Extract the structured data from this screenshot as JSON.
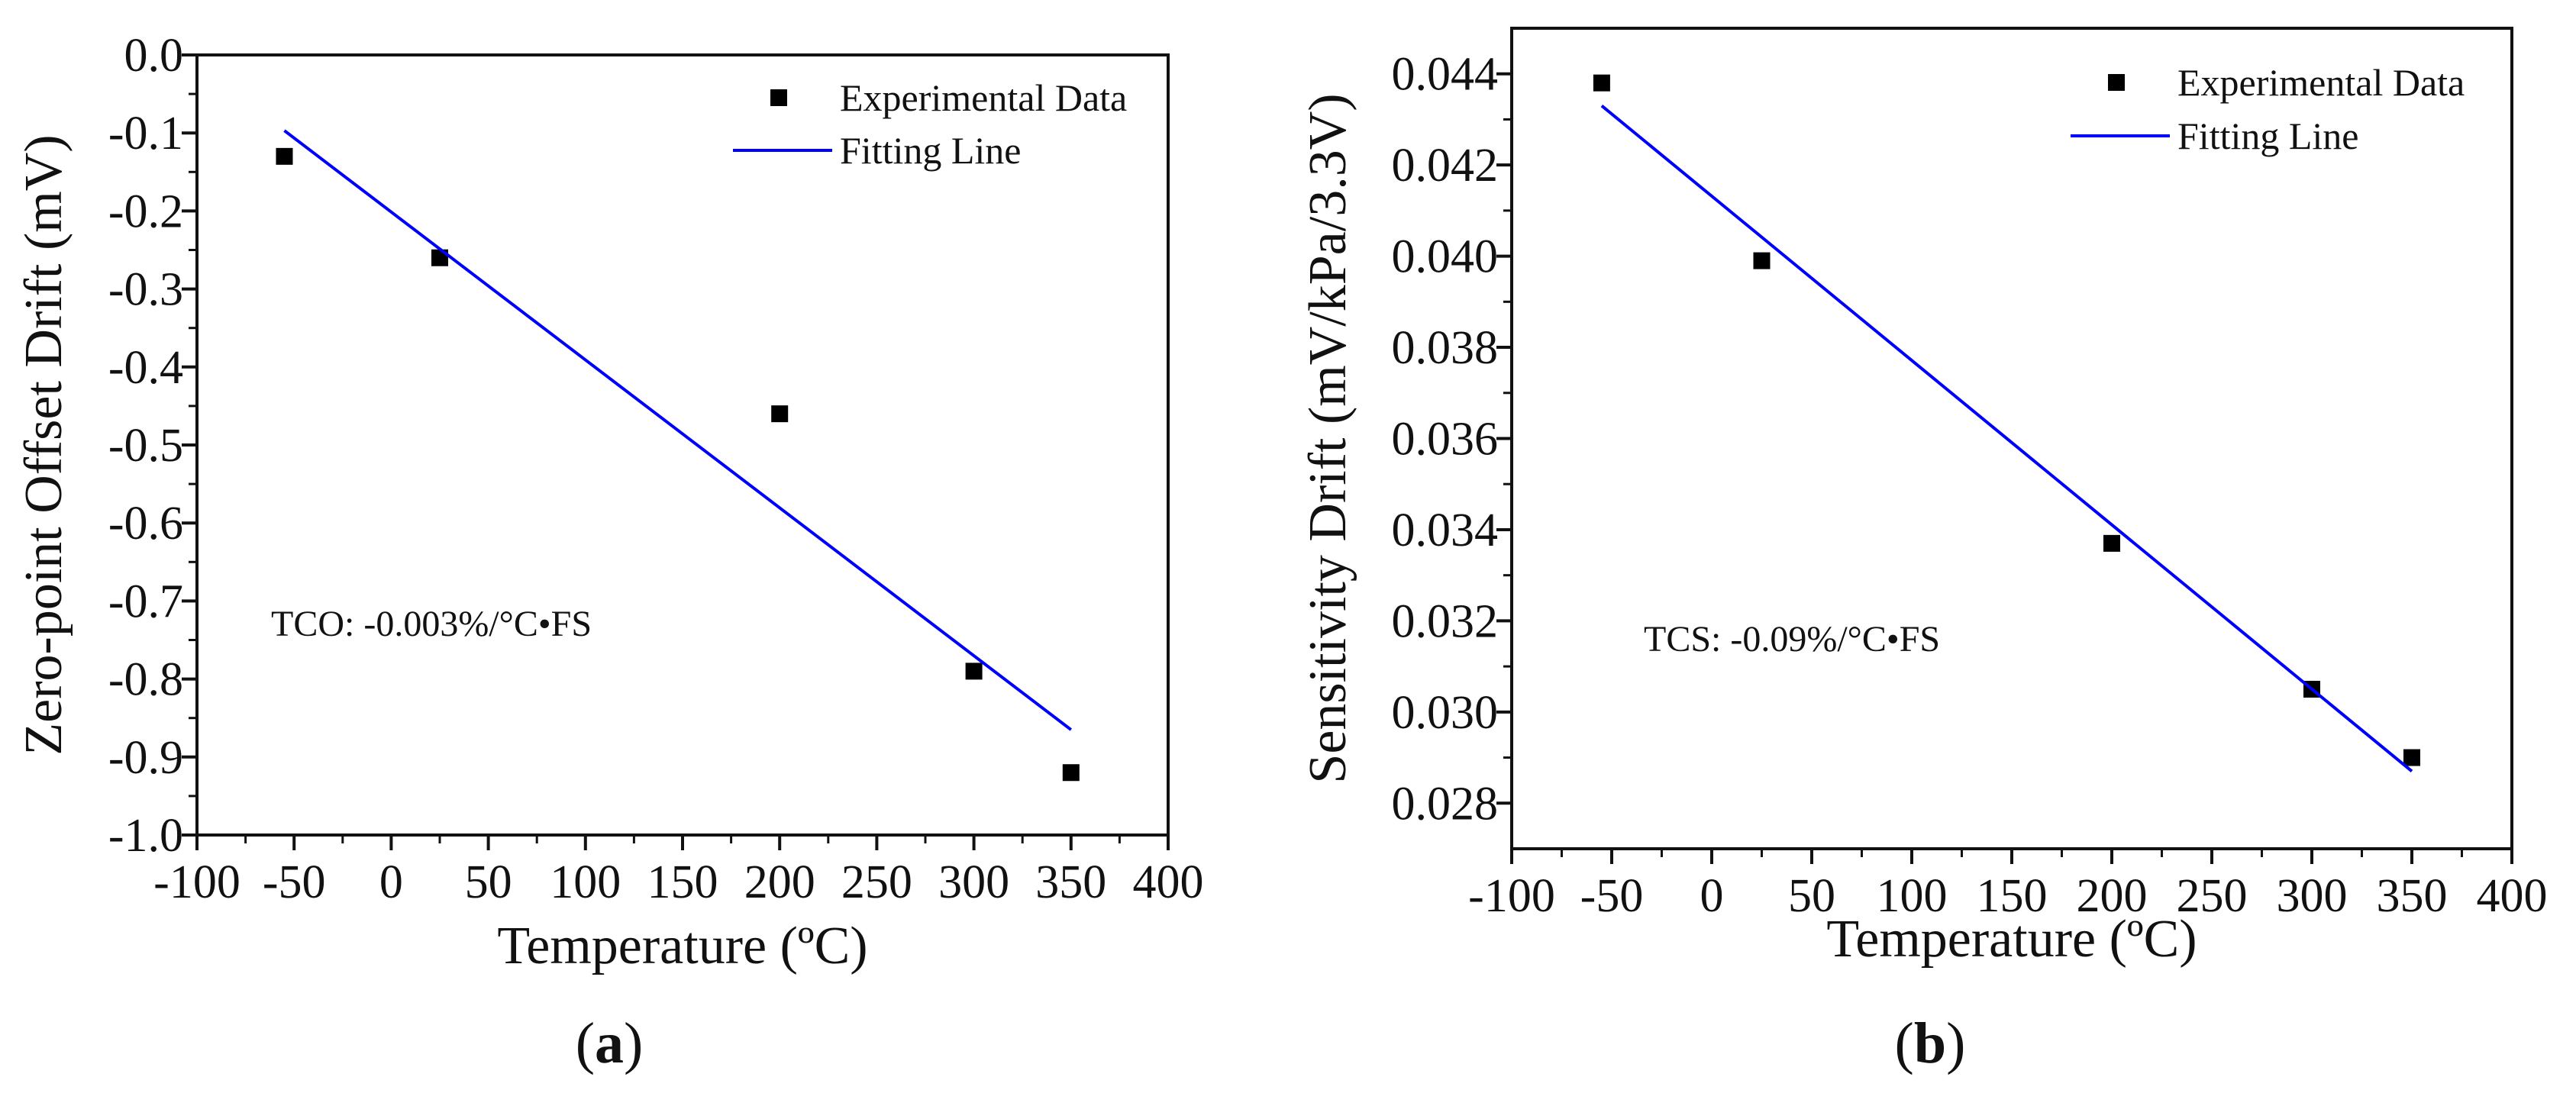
{
  "chart_data": [
    {
      "panel": "a",
      "type": "scatter",
      "title": "",
      "xlabel": "Temperature (ºC)",
      "ylabel": "Zero-point Offset Drift (mV)",
      "xlim": [
        -100,
        400
      ],
      "ylim": [
        -1.0,
        0.0
      ],
      "xticks": [
        -100,
        -50,
        0,
        50,
        100,
        150,
        200,
        250,
        300,
        350,
        400
      ],
      "xtick_labels": [
        "-100",
        "-50",
        "0",
        "50",
        "100",
        "150",
        "200",
        "250",
        "300",
        "350",
        "400"
      ],
      "yticks": [
        0.0,
        -0.1,
        -0.2,
        -0.3,
        -0.4,
        -0.5,
        -0.6,
        -0.7,
        -0.8,
        -0.9,
        -1.0
      ],
      "ytick_labels": [
        "0.0",
        "-0.1",
        "-0.2",
        "-0.3",
        "-0.4",
        "-0.5",
        "-0.6",
        "-0.7",
        "-0.8",
        "-0.9",
        "-1.0"
      ],
      "series": [
        {
          "name": "Experimental Data",
          "kind": "scatter",
          "color": "#000000",
          "x": [
            -55,
            25,
            200,
            300,
            350
          ],
          "y": [
            -0.13,
            -0.26,
            -0.46,
            -0.79,
            -0.92
          ]
        },
        {
          "name": "Fitting Line",
          "kind": "line",
          "color": "#0000ff",
          "x": [
            -55,
            350
          ],
          "y": [
            -0.097,
            -0.865
          ]
        }
      ],
      "annotation": "TCO: -0.003%/°C•FS",
      "caption_letter": "a",
      "caption_open": "(",
      "caption_close": ")",
      "legend_position": "top-right"
    },
    {
      "panel": "b",
      "type": "scatter",
      "title": "",
      "xlabel": "Temperature (ºC)",
      "ylabel": "Sensitivity Drift (mV/kPa/3.3V)",
      "xlim": [
        -100,
        400
      ],
      "ylim": [
        0.027,
        0.045
      ],
      "xticks": [
        -100,
        -50,
        0,
        50,
        100,
        150,
        200,
        250,
        300,
        350,
        400
      ],
      "xtick_labels": [
        "-100",
        "-50",
        "0",
        "50",
        "100",
        "150",
        "200",
        "250",
        "300",
        "350",
        "400"
      ],
      "yticks": [
        0.028,
        0.03,
        0.032,
        0.034,
        0.036,
        0.038,
        0.04,
        0.042,
        0.044
      ],
      "ytick_labels": [
        "0.028",
        "0.030",
        "0.032",
        "0.034",
        "0.036",
        "0.038",
        "0.040",
        "0.042",
        "0.044"
      ],
      "series": [
        {
          "name": "Experimental Data",
          "kind": "scatter",
          "color": "#000000",
          "x": [
            -55,
            25,
            200,
            300,
            350
          ],
          "y": [
            0.0438,
            0.0399,
            0.0337,
            0.0305,
            0.029
          ]
        },
        {
          "name": "Fitting Line",
          "kind": "line",
          "color": "#0000ff",
          "x": [
            -55,
            350
          ],
          "y": [
            0.0433,
            0.0287
          ]
        }
      ],
      "annotation": "TCS: -0.09%/°C•FS",
      "caption_letter": "b",
      "caption_open": "(",
      "caption_close": ")",
      "legend_position": "top-right"
    }
  ]
}
